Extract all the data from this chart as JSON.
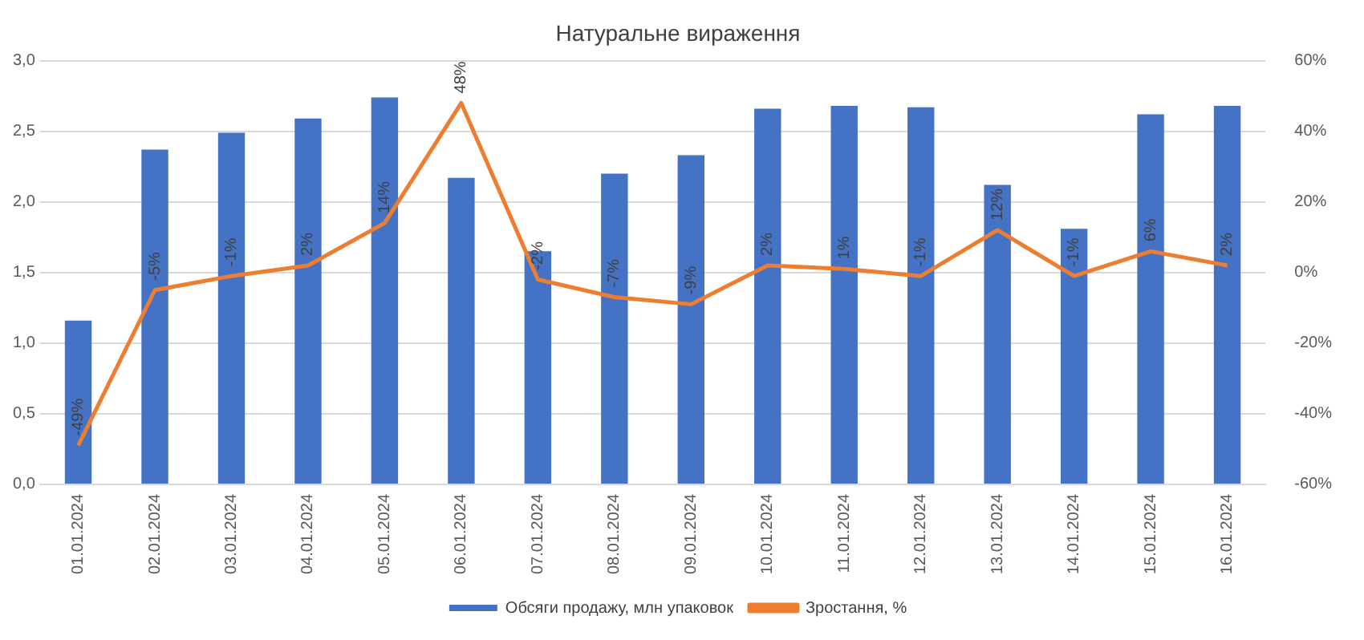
{
  "chart_data": {
    "type": "bar",
    "title": "Натуральне вираження",
    "categories": [
      "01.01.2024",
      "02.01.2024",
      "03.01.2024",
      "04.01.2024",
      "05.01.2024",
      "06.01.2024",
      "07.01.2024",
      "08.01.2024",
      "09.01.2024",
      "10.01.2024",
      "11.01.2024",
      "12.01.2024",
      "13.01.2024",
      "14.01.2024",
      "15.01.2024",
      "16.01.2024"
    ],
    "series": [
      {
        "name": "Обсяги продажу, млн упаковок",
        "color": "#4472c4",
        "values": [
          1.16,
          2.37,
          2.49,
          2.59,
          2.74,
          2.17,
          1.65,
          2.2,
          2.33,
          2.66,
          2.68,
          2.67,
          2.12,
          1.81,
          2.62,
          2.68
        ]
      },
      {
        "name": "Зростання, %",
        "type": "line",
        "axis": "y2",
        "color": "#ed7d31",
        "values": [
          -49,
          -5,
          -1,
          2,
          14,
          48,
          -2,
          -7,
          -9,
          2,
          1,
          -1,
          12,
          -1,
          6,
          2
        ],
        "value_labels": [
          "-49%",
          "-5%",
          "-1%",
          "2%",
          "14%",
          "48%",
          "-2%",
          "-7%",
          "-9%",
          "2%",
          "1%",
          "-1%",
          "12%",
          "-1%",
          "6%",
          "2%"
        ]
      }
    ],
    "ylim": [
      0,
      3
    ],
    "yticks": [
      {
        "value": 0,
        "label": "0,0"
      },
      {
        "value": 0.5,
        "label": "0,5"
      },
      {
        "value": 1,
        "label": "1,0"
      },
      {
        "value": 1.5,
        "label": "1,5"
      },
      {
        "value": 2,
        "label": "2,0"
      },
      {
        "value": 2.5,
        "label": "2,5"
      },
      {
        "value": 3,
        "label": "3,0"
      }
    ],
    "y2lim": [
      -60,
      60
    ],
    "y2ticks": [
      {
        "value": -60,
        "label": "-60%"
      },
      {
        "value": -40,
        "label": "-40%"
      },
      {
        "value": -20,
        "label": "-20%"
      },
      {
        "value": 0,
        "label": "0%"
      },
      {
        "value": 20,
        "label": "20%"
      },
      {
        "value": 40,
        "label": "40%"
      },
      {
        "value": 60,
        "label": "60%"
      }
    ],
    "grid": "y",
    "legend": "bottom",
    "marker": "none"
  }
}
